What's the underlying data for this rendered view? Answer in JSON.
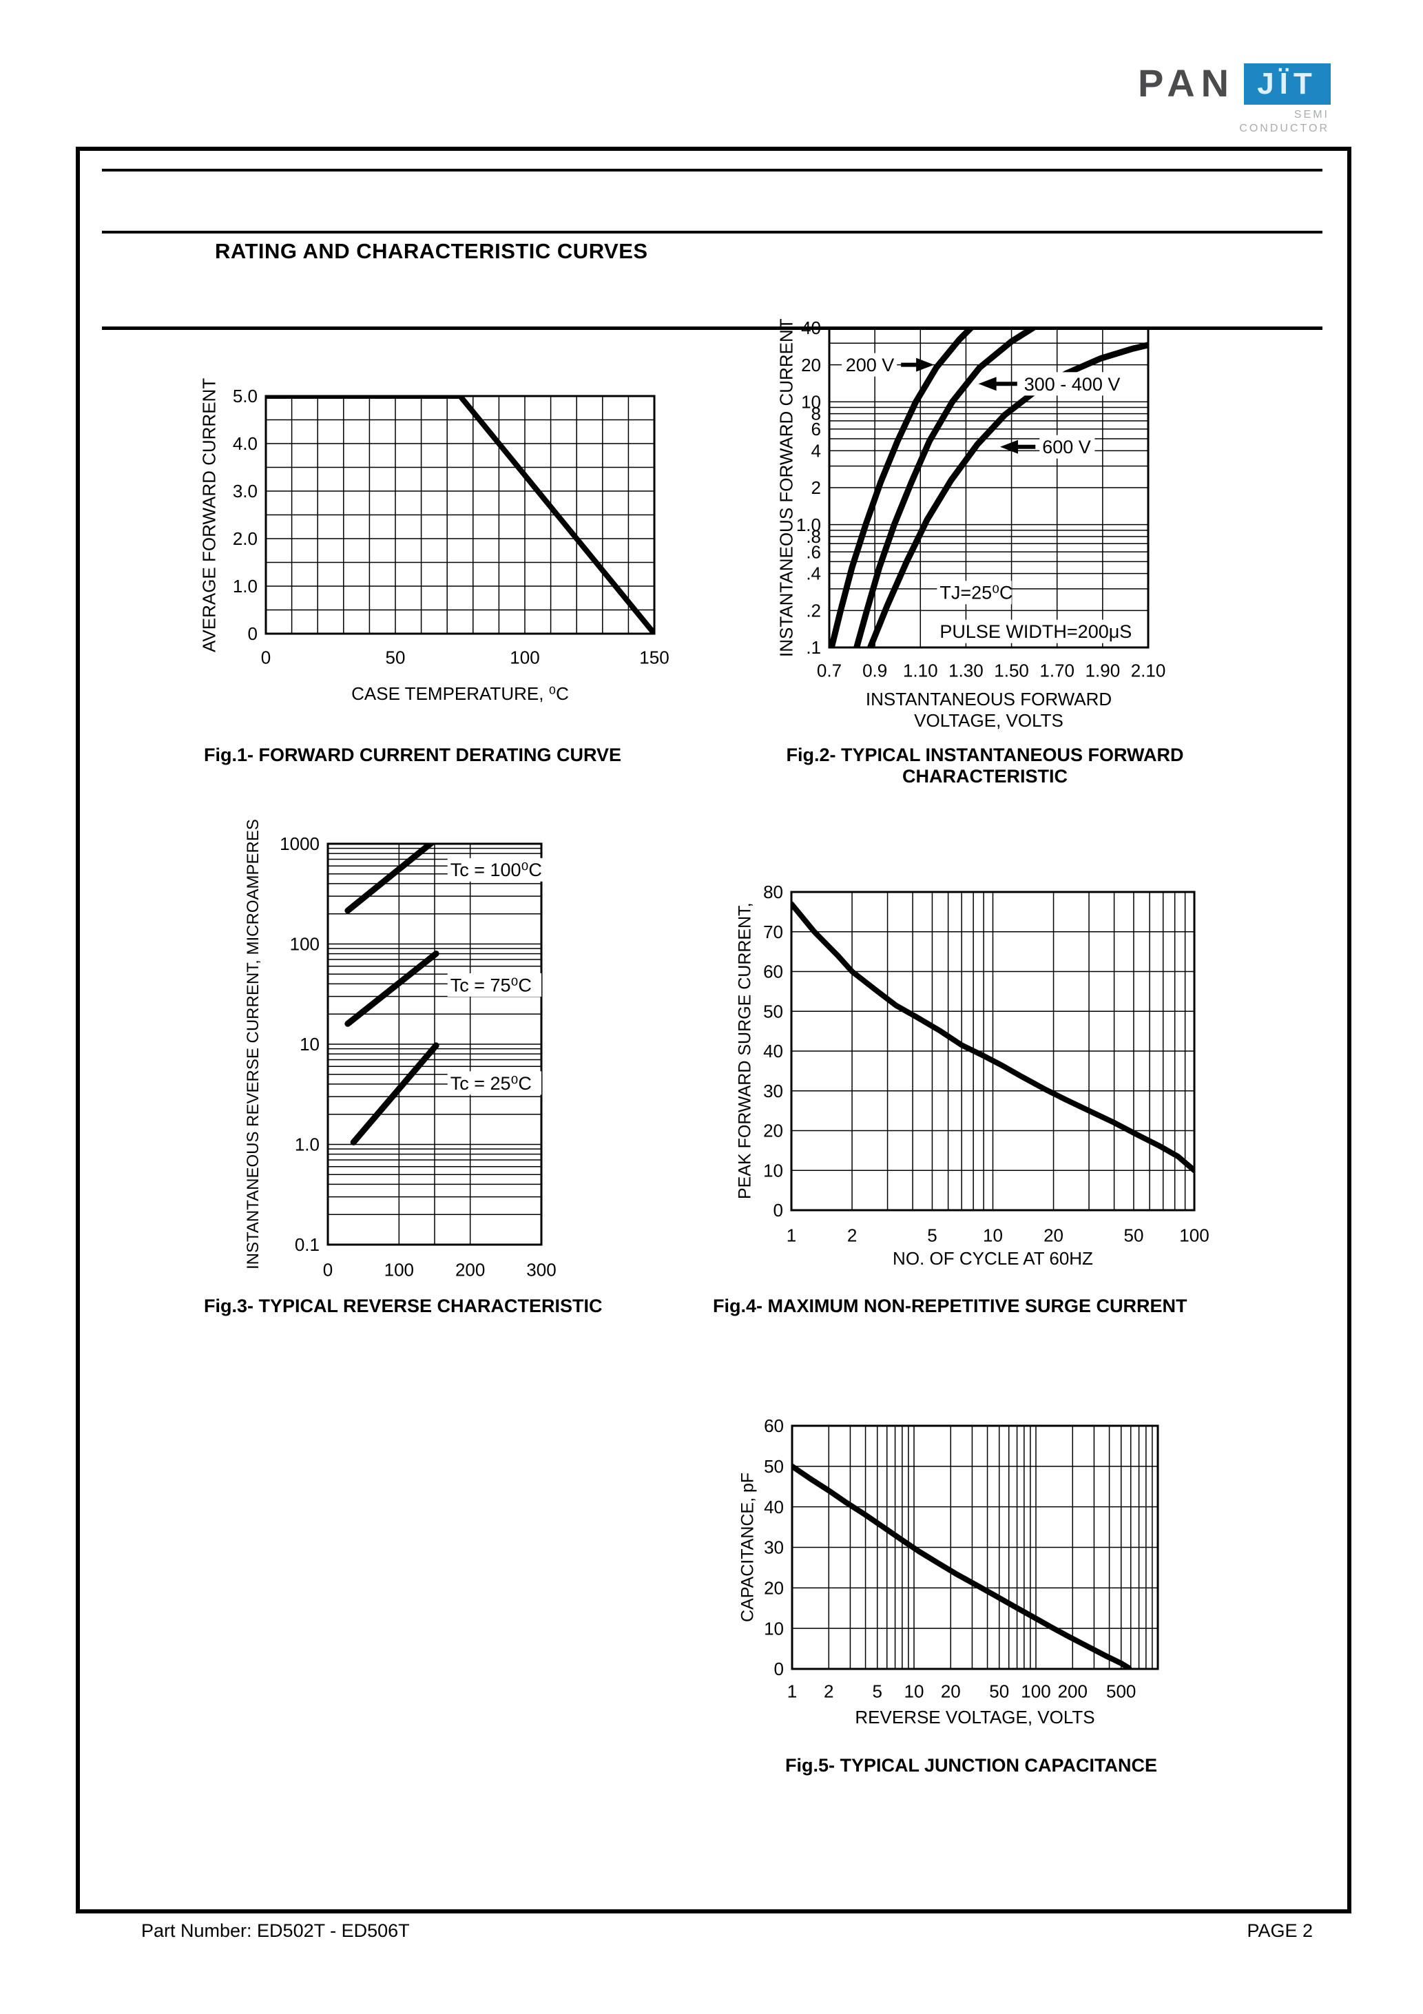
{
  "logo": {
    "pan": "PAN",
    "jit": "JÏT",
    "sub1": "SEMI",
    "sub2": "CONDUCTOR",
    "blue": "#1c87c1",
    "dark_gray": "#4b4b4d",
    "light_gray": "#a9adb0"
  },
  "header": {
    "title": "RATING AND CHARACTERISTIC CURVES"
  },
  "footer": {
    "part_label": "Part Number: ED502T - ED506T",
    "page_label": "PAGE  2"
  },
  "chart_data": [
    {
      "id": "fig1",
      "type": "line",
      "title": "Fig.1- FORWARD CURRENT DERATING CURVE",
      "xlabel": "CASE TEMPERATURE, ⁰C",
      "ylabel": "AVERAGE FORWARD CURRENT",
      "x": {
        "scale": "linear",
        "min": 0,
        "max": 150,
        "grid": [
          0,
          10,
          20,
          30,
          40,
          50,
          60,
          70,
          80,
          90,
          100,
          110,
          120,
          130,
          140,
          150
        ],
        "ticks": [
          {
            "v": 0,
            "t": "0"
          },
          {
            "v": 50,
            "t": "50"
          },
          {
            "v": 100,
            "t": "100"
          },
          {
            "v": 150,
            "t": "150"
          }
        ]
      },
      "y": {
        "scale": "linear",
        "min": 0,
        "max": 5,
        "grid": [
          0,
          0.5,
          1,
          1.5,
          2,
          2.5,
          3,
          3.5,
          4,
          4.5,
          5
        ],
        "ticks": [
          {
            "v": 5,
            "t": "5.0"
          },
          {
            "v": 4,
            "t": "4.0"
          },
          {
            "v": 3,
            "t": "3.0"
          },
          {
            "v": 2,
            "t": "2.0"
          },
          {
            "v": 1,
            "t": "1.0"
          },
          {
            "v": 0,
            "t": "0"
          }
        ]
      },
      "series": [
        {
          "name": "derating",
          "points": [
            [
              0,
              5
            ],
            [
              75,
              5
            ],
            [
              150,
              0
            ]
          ]
        }
      ],
      "annotations": []
    },
    {
      "id": "fig2",
      "type": "line",
      "title": "Fig.2- TYPICAL INSTANTANEOUS FORWARD\nCHARACTERISTIC",
      "xlabel": "INSTANTANEOUS FORWARD VOLTAGE, VOLTS",
      "ylabel": "INSTANTANEOUS FORWARD CURRENT",
      "x": {
        "scale": "linear",
        "min": 0.7,
        "max": 2.1,
        "grid": [
          0.7,
          0.9,
          1.1,
          1.3,
          1.5,
          1.7,
          1.9,
          2.1
        ],
        "ticks": [
          {
            "v": 0.7,
            "t": "0.7"
          },
          {
            "v": 0.9,
            "t": "0.9"
          },
          {
            "v": 1.1,
            "t": "1.10"
          },
          {
            "v": 1.3,
            "t": "1.30"
          },
          {
            "v": 1.5,
            "t": "1.50"
          },
          {
            "v": 1.7,
            "t": "1.70"
          },
          {
            "v": 1.9,
            "t": "1.90"
          },
          {
            "v": 2.1,
            "t": "2.10"
          }
        ]
      },
      "y": {
        "scale": "log",
        "min": 0.1,
        "max": 40,
        "grid": [
          0.1,
          0.2,
          0.3,
          0.4,
          0.5,
          0.6,
          0.7,
          0.8,
          0.9,
          1,
          2,
          3,
          4,
          5,
          6,
          7,
          8,
          9,
          10,
          20,
          30,
          40
        ],
        "ticks": [
          {
            "v": 40,
            "t": "40"
          },
          {
            "v": 20,
            "t": "20"
          },
          {
            "v": 10,
            "t": "10"
          },
          {
            "v": 8,
            "t": "8"
          },
          {
            "v": 6,
            "t": "6"
          },
          {
            "v": 4,
            "t": "4"
          },
          {
            "v": 2,
            "t": "2"
          },
          {
            "v": 1,
            "t": "1.0"
          },
          {
            "v": 0.8,
            "t": ".8"
          },
          {
            "v": 0.6,
            "t": ".6"
          },
          {
            "v": 0.4,
            "t": ".4"
          },
          {
            "v": 0.2,
            "t": ".2"
          },
          {
            "v": 0.1,
            "t": ".1"
          }
        ]
      },
      "series": [
        {
          "name": "200 V",
          "points": [
            [
              0.71,
              0.1
            ],
            [
              0.75,
              0.2
            ],
            [
              0.8,
              0.45
            ],
            [
              0.86,
              1.0
            ],
            [
              0.925,
              2.2
            ],
            [
              1.0,
              4.8
            ],
            [
              1.08,
              10
            ],
            [
              1.17,
              19
            ],
            [
              1.27,
              32
            ],
            [
              1.36,
              47
            ]
          ]
        },
        {
          "name": "300 - 400 V",
          "points": [
            [
              0.82,
              0.1
            ],
            [
              0.865,
              0.2
            ],
            [
              0.92,
              0.45
            ],
            [
              0.985,
              1.0
            ],
            [
              1.06,
              2.2
            ],
            [
              1.14,
              4.8
            ],
            [
              1.24,
              10
            ],
            [
              1.36,
              19
            ],
            [
              1.5,
              31
            ],
            [
              1.63,
              44
            ],
            [
              1.69,
              50
            ]
          ]
        },
        {
          "name": "600 V",
          "points": [
            [
              0.88,
              0.1
            ],
            [
              0.955,
              0.22
            ],
            [
              1.04,
              0.5
            ],
            [
              1.13,
              1.1
            ],
            [
              1.235,
              2.3
            ],
            [
              1.35,
              4.5
            ],
            [
              1.47,
              7.8
            ],
            [
              1.6,
              12
            ],
            [
              1.74,
              17
            ],
            [
              1.89,
              22.5
            ],
            [
              2.03,
              27
            ],
            [
              2.1,
              29
            ]
          ]
        }
      ],
      "annotations": [
        {
          "text": "200 V",
          "x": 0.985,
          "y": 20,
          "anchor": "end",
          "bg": true,
          "arrow": [
            1.015,
            20,
            1.16,
            20
          ]
        },
        {
          "text": "300 - 400 V",
          "x": 1.555,
          "y": 14,
          "anchor": "start",
          "bg": true,
          "arrow": [
            1.525,
            14,
            1.355,
            14
          ]
        },
        {
          "text": "600 V",
          "x": 1.635,
          "y": 4.3,
          "anchor": "start",
          "bg": true,
          "arrow": [
            1.605,
            4.3,
            1.45,
            4.3
          ]
        },
        {
          "text": "TJ=25⁰C",
          "x": 1.185,
          "y": 0.28,
          "anchor": "start",
          "bg": true
        },
        {
          "text": "PULSE WIDTH=200μS",
          "x": 1.185,
          "y": 0.135,
          "anchor": "start",
          "bg": true
        }
      ],
      "conditions": [
        "TJ=25⁰C",
        "PULSE WIDTH=200μS"
      ]
    },
    {
      "id": "fig3",
      "type": "line",
      "title": "Fig.3- TYPICAL REVERSE CHARACTERISTIC",
      "xlabel": "",
      "ylabel": "INSTANTANEOUS REVERSE CURRENT, MICROAMPERES",
      "x": {
        "scale": "linear",
        "min": 0,
        "max": 300,
        "grid": [
          0,
          100,
          150,
          200,
          300
        ],
        "ticks": [
          {
            "v": 0,
            "t": "0"
          },
          {
            "v": 100,
            "t": "100"
          },
          {
            "v": 200,
            "t": "200"
          },
          {
            "v": 300,
            "t": "300"
          }
        ]
      },
      "y": {
        "scale": "log",
        "min": 0.1,
        "max": 1000,
        "grid": [
          0.1,
          0.2,
          0.3,
          0.4,
          0.5,
          0.6,
          0.7,
          0.8,
          0.9,
          1,
          2,
          3,
          4,
          5,
          6,
          7,
          8,
          9,
          10,
          20,
          30,
          40,
          50,
          60,
          70,
          80,
          90,
          100,
          200,
          300,
          400,
          500,
          600,
          700,
          800,
          900,
          1000
        ],
        "ticks": [
          {
            "v": 1000,
            "t": "1000"
          },
          {
            "v": 100,
            "t": "100"
          },
          {
            "v": 10,
            "t": "10"
          },
          {
            "v": 1,
            "t": "1.0"
          },
          {
            "v": 0.1,
            "t": "0.1"
          }
        ]
      },
      "series": [
        {
          "name": "Tc = 100C",
          "points": [
            [
              28,
              215
            ],
            [
              150,
              1080
            ]
          ]
        },
        {
          "name": "Tc = 75C",
          "points": [
            [
              28,
              16
            ],
            [
              152,
              80
            ]
          ]
        },
        {
          "name": "Tc = 25C",
          "points": [
            [
              36,
              1.05
            ],
            [
              152,
              9.7
            ]
          ]
        }
      ],
      "annotations": [
        {
          "text": "Tc = 100⁰C",
          "x": 172,
          "y": 550,
          "anchor": "start",
          "bg": true
        },
        {
          "text": "Tc = 75⁰C",
          "x": 172,
          "y": 39,
          "anchor": "start",
          "bg": true
        },
        {
          "text": "Tc = 25⁰C",
          "x": 172,
          "y": 4.1,
          "anchor": "start",
          "bg": true
        }
      ]
    },
    {
      "id": "fig4",
      "type": "line",
      "title": "Fig.4- MAXIMUM NON-REPETITIVE SURGE CURRENT",
      "xlabel": "NO. OF CYCLE AT 60HZ",
      "ylabel": "PEAK FORWARD SURGE CURRENT,",
      "x": {
        "scale": "log",
        "min": 1,
        "max": 100,
        "grid": [
          1,
          2,
          3,
          4,
          5,
          6,
          7,
          8,
          9,
          10,
          20,
          30,
          40,
          50,
          60,
          70,
          80,
          90,
          100
        ],
        "ticks": [
          {
            "v": 1,
            "t": "1"
          },
          {
            "v": 2,
            "t": "2"
          },
          {
            "v": 5,
            "t": "5"
          },
          {
            "v": 10,
            "t": "10"
          },
          {
            "v": 20,
            "t": "20"
          },
          {
            "v": 50,
            "t": "50"
          },
          {
            "v": 100,
            "t": "100"
          }
        ]
      },
      "y": {
        "scale": "linear",
        "min": 0,
        "max": 80,
        "grid": [
          0,
          10,
          20,
          30,
          40,
          50,
          60,
          70,
          80
        ],
        "ticks": [
          {
            "v": 80,
            "t": "80"
          },
          {
            "v": 70,
            "t": "70"
          },
          {
            "v": 60,
            "t": "60"
          },
          {
            "v": 50,
            "t": "50"
          },
          {
            "v": 40,
            "t": "40"
          },
          {
            "v": 30,
            "t": "30"
          },
          {
            "v": 20,
            "t": "20"
          },
          {
            "v": 10,
            "t": "10"
          },
          {
            "v": 0,
            "t": "0"
          }
        ]
      },
      "series": [
        {
          "name": "surge",
          "points": [
            [
              1,
              77
            ],
            [
              1.3,
              70
            ],
            [
              1.7,
              64
            ],
            [
              2,
              60
            ],
            [
              2.6,
              55.5
            ],
            [
              3.3,
              51.5
            ],
            [
              4.2,
              48.5
            ],
            [
              5.5,
              45
            ],
            [
              7,
              41.5
            ],
            [
              9,
              38.8
            ],
            [
              11,
              36.5
            ],
            [
              14,
              33.5
            ],
            [
              18,
              30.5
            ],
            [
              23,
              27.8
            ],
            [
              30,
              25
            ],
            [
              40,
              22
            ],
            [
              52,
              19
            ],
            [
              68,
              16
            ],
            [
              83,
              13.5
            ],
            [
              100,
              10
            ]
          ]
        }
      ],
      "annotations": []
    },
    {
      "id": "fig5",
      "type": "line",
      "title": "Fig.5- TYPICAL JUNCTION CAPACITANCE",
      "xlabel": "REVERSE VOLTAGE, VOLTS",
      "ylabel": "CAPACITANCE, pF",
      "x": {
        "scale": "log",
        "min": 1,
        "max": 1000,
        "grid": [
          1,
          2,
          3,
          4,
          5,
          6,
          7,
          8,
          9,
          10,
          20,
          30,
          40,
          50,
          60,
          70,
          80,
          90,
          100,
          200,
          300,
          400,
          500,
          600,
          700,
          800,
          900,
          1000
        ],
        "ticks": [
          {
            "v": 1,
            "t": "1"
          },
          {
            "v": 2,
            "t": "2"
          },
          {
            "v": 5,
            "t": "5"
          },
          {
            "v": 10,
            "t": "10"
          },
          {
            "v": 20,
            "t": "20"
          },
          {
            "v": 50,
            "t": "50"
          },
          {
            "v": 100,
            "t": "100"
          },
          {
            "v": 200,
            "t": "200"
          },
          {
            "v": 500,
            "t": "500"
          }
        ]
      },
      "y": {
        "scale": "linear",
        "min": 0,
        "max": 60,
        "grid": [
          0,
          10,
          20,
          30,
          40,
          50,
          60
        ],
        "ticks": [
          {
            "v": 60,
            "t": "60"
          },
          {
            "v": 50,
            "t": "50"
          },
          {
            "v": 40,
            "t": "40"
          },
          {
            "v": 30,
            "t": "30"
          },
          {
            "v": 20,
            "t": "20"
          },
          {
            "v": 10,
            "t": "10"
          },
          {
            "v": 0,
            "t": "0"
          }
        ]
      },
      "series": [
        {
          "name": "junction capacitance",
          "points": [
            [
              1,
              50
            ],
            [
              1.4,
              47
            ],
            [
              2,
              44
            ],
            [
              2.8,
              41
            ],
            [
              4,
              38
            ],
            [
              5.6,
              35
            ],
            [
              8,
              31.8
            ],
            [
              11,
              29
            ],
            [
              16,
              26
            ],
            [
              22,
              23.5
            ],
            [
              32,
              20.8
            ],
            [
              45,
              18.3
            ],
            [
              64,
              15.7
            ],
            [
              90,
              13.2
            ],
            [
              130,
              10.5
            ],
            [
              185,
              8
            ],
            [
              260,
              5.7
            ],
            [
              370,
              3.3
            ],
            [
              500,
              1.4
            ],
            [
              580,
              0.2
            ]
          ]
        }
      ],
      "annotations": []
    }
  ]
}
